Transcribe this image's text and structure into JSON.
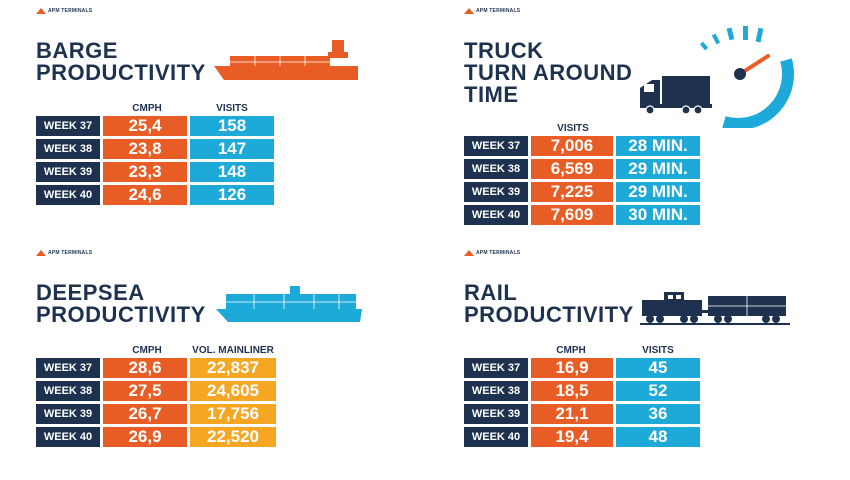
{
  "brand": {
    "logo_text": "APM TERMINALS",
    "colors": {
      "navy": "#1e3250",
      "orange": "#e85d25",
      "blue": "#1eaad9",
      "yellow": "#f5a623"
    }
  },
  "barge": {
    "title_line1": "BARGE",
    "title_line2": "PRODUCTIVITY",
    "col1": "CMPH",
    "col2": "VISITS",
    "rows": [
      {
        "week": "WEEK 37",
        "v1": "25,4",
        "v2": "158"
      },
      {
        "week": "WEEK 38",
        "v1": "23,8",
        "v2": "147"
      },
      {
        "week": "WEEK 39",
        "v1": "23,3",
        "v2": "148"
      },
      {
        "week": "WEEK 40",
        "v1": "24,6",
        "v2": "126"
      }
    ],
    "icon": "barge-ship-icon"
  },
  "truck": {
    "title_line1": "TRUCK",
    "title_line2": "TURN AROUND",
    "title_line3": "TIME",
    "col1": "VISITS",
    "rows": [
      {
        "week": "WEEK 37",
        "v1": "7,006",
        "v2": "28 MIN."
      },
      {
        "week": "WEEK 38",
        "v1": "6,569",
        "v2": "29 MIN."
      },
      {
        "week": "WEEK 39",
        "v1": "7,225",
        "v2": "29 MIN."
      },
      {
        "week": "WEEK 40",
        "v1": "7,609",
        "v2": "30 MIN."
      }
    ],
    "icon": "truck-speedometer-icon"
  },
  "deepsea": {
    "title_line1": "DEEPSEA",
    "title_line2": "PRODUCTIVITY",
    "col1": "CMPH",
    "col2": "VOL. MAINLINER",
    "rows": [
      {
        "week": "WEEK 37",
        "v1": "28,6",
        "v2": "22,837"
      },
      {
        "week": "WEEK 38",
        "v1": "27,5",
        "v2": "24,605"
      },
      {
        "week": "WEEK 39",
        "v1": "26,7",
        "v2": "17,756"
      },
      {
        "week": "WEEK 40",
        "v1": "26,9",
        "v2": "22,520"
      }
    ],
    "icon": "container-ship-icon"
  },
  "rail": {
    "title_line1": "RAIL",
    "title_line2": "PRODUCTIVITY",
    "col1": "CMPH",
    "col2": "VISITS",
    "rows": [
      {
        "week": "WEEK 37",
        "v1": "16,9",
        "v2": "45"
      },
      {
        "week": "WEEK 38",
        "v1": "18,5",
        "v2": "52"
      },
      {
        "week": "WEEK 39",
        "v1": "21,1",
        "v2": "36"
      },
      {
        "week": "WEEK 40",
        "v1": "19,4",
        "v2": "48"
      }
    ],
    "icon": "train-icon"
  }
}
